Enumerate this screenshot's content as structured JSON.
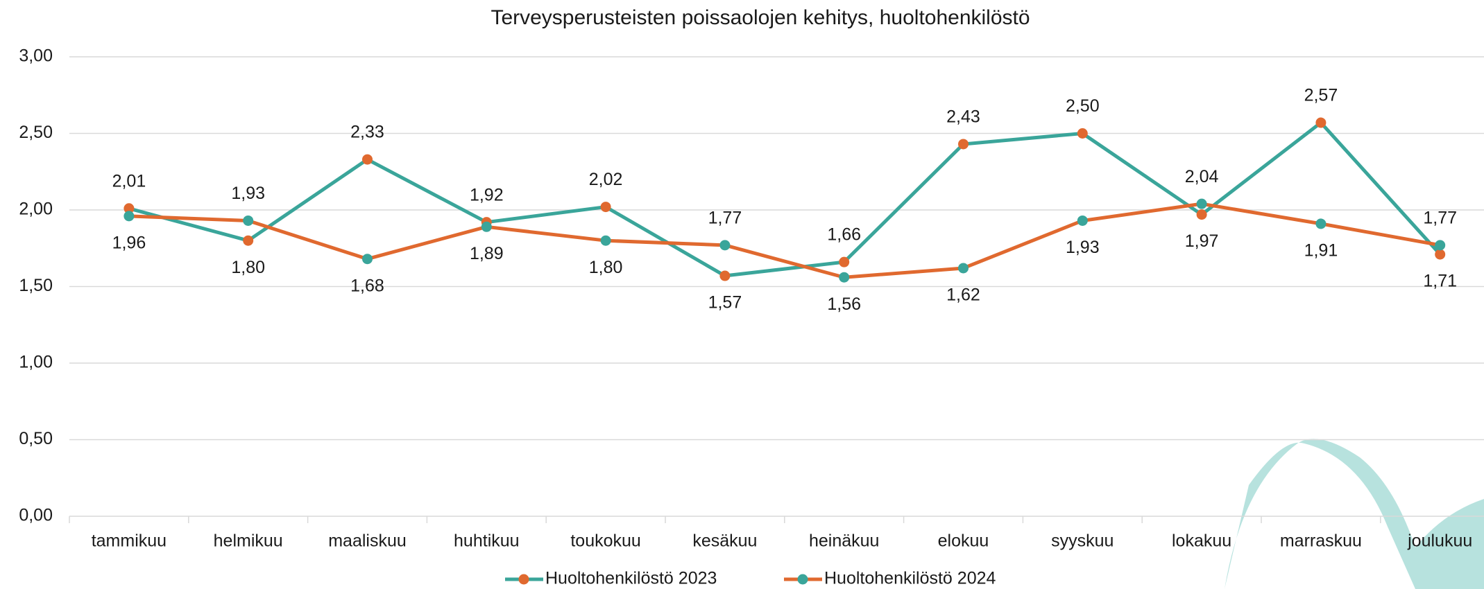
{
  "chart_data": {
    "type": "line",
    "title": "Terveysperusteisten poissaolojen kehitys, huoltohenkilöstö",
    "categories": [
      "tammikuu",
      "helmikuu",
      "maaliskuu",
      "huhtikuu",
      "toukokuu",
      "kesäkuu",
      "heinäkuu",
      "elokuu",
      "syyskuu",
      "lokakuu",
      "marraskuu",
      "joulukuu"
    ],
    "series": [
      {
        "name": "Huoltohenkilöstö 2023",
        "color": "#3aa59a",
        "marker_color": "#e0692f",
        "values": [
          2.01,
          1.8,
          2.33,
          1.92,
          2.02,
          1.57,
          1.66,
          2.43,
          2.5,
          1.97,
          2.57,
          1.71
        ],
        "value_labels": [
          "2,01",
          "1,80",
          "2,33",
          "1,92",
          "2,02",
          "1,57",
          "1,66",
          "2,43",
          "2,50",
          "1,97",
          "2,57",
          "1,71"
        ]
      },
      {
        "name": "Huoltohenkilöstö 2024",
        "color": "#e0692f",
        "marker_color": "#3aa59a",
        "values": [
          1.96,
          1.93,
          1.68,
          1.89,
          1.8,
          1.77,
          1.56,
          1.62,
          1.93,
          2.04,
          1.91,
          1.77
        ],
        "value_labels": [
          "1,96",
          "1,93",
          "1,68",
          "1,89",
          "1,80",
          "1,77",
          "1,56",
          "1,62",
          "1,93",
          "2,04",
          "1,91",
          "1,77"
        ]
      }
    ],
    "ylim": [
      0,
      3
    ],
    "yticks": [
      {
        "value": 0,
        "label": "0,00"
      },
      {
        "value": 0.5,
        "label": "0,50"
      },
      {
        "value": 1,
        "label": "1,00"
      },
      {
        "value": 1.5,
        "label": "1,50"
      },
      {
        "value": 2,
        "label": "2,00"
      },
      {
        "value": 2.5,
        "label": "2,50"
      },
      {
        "value": 3,
        "label": "3,00"
      }
    ],
    "grid": true,
    "legend": "bottom"
  }
}
